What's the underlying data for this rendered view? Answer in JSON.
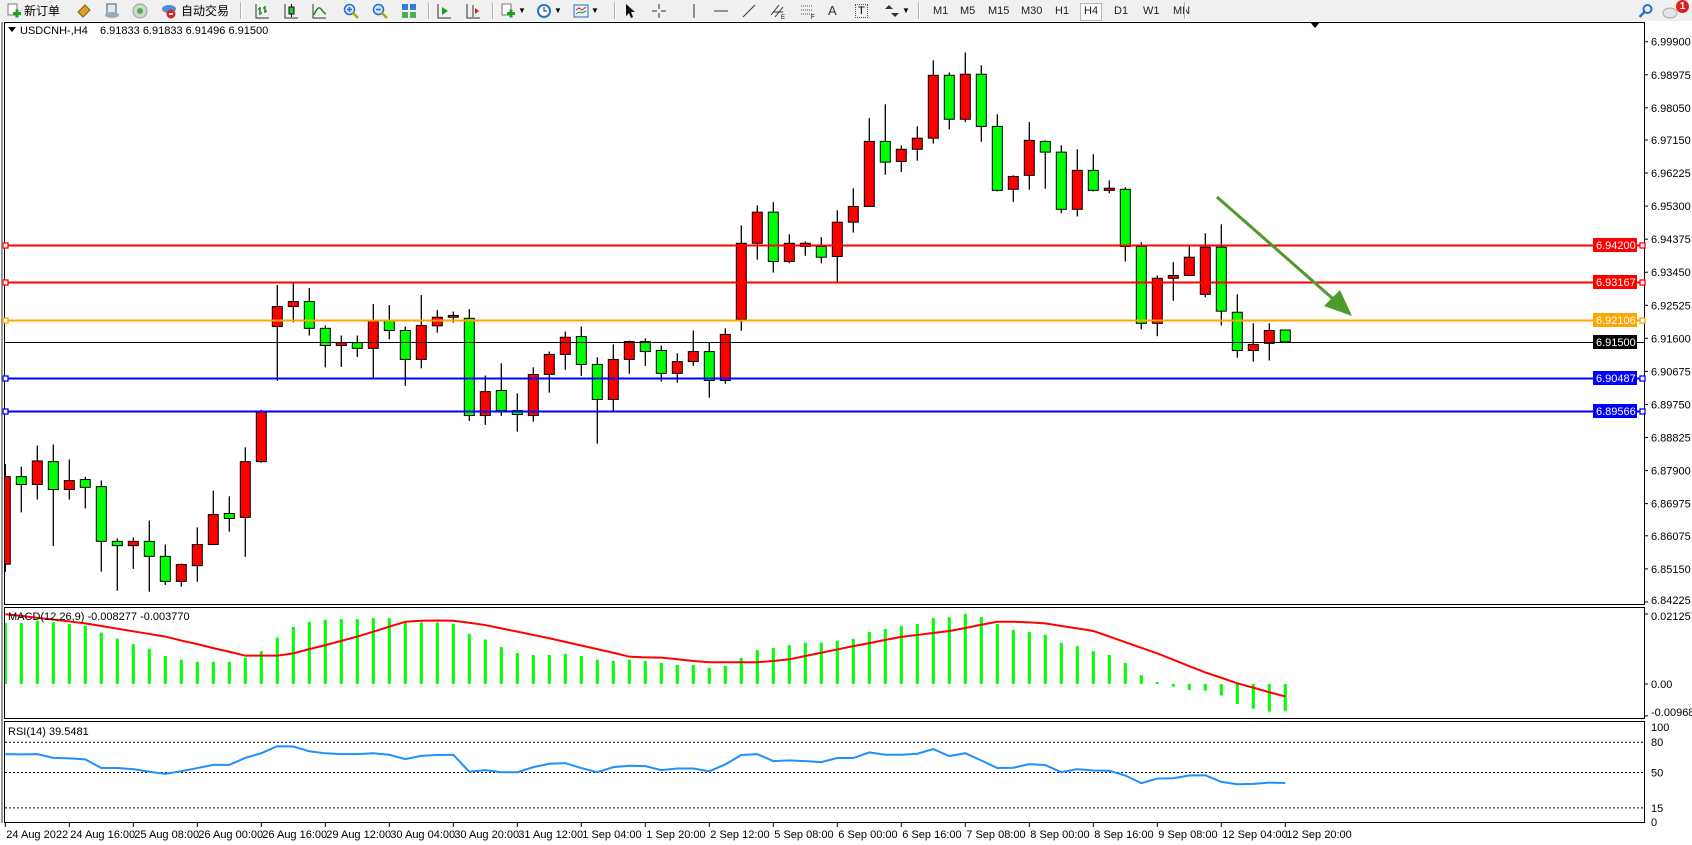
{
  "toolbar": {
    "new_order_label": "新订单",
    "autotrading_label": "自动交易",
    "text_tool_label": "A",
    "text_label_tool": "T",
    "timeframes": [
      "M1",
      "M5",
      "M15",
      "M30",
      "H1",
      "H4",
      "D1",
      "W1",
      "MN"
    ],
    "active_timeframe": "H4",
    "notification_count": "1",
    "icons": [
      "new-order-icon",
      "metaeditor-icon",
      "market-watch-icon",
      "signals-icon",
      "autotrading-icon",
      "bar-chart-icon",
      "candlestick-icon",
      "line-chart-icon",
      "zoom-in-icon",
      "zoom-out-icon",
      "tile-windows-icon",
      "auto-scroll-icon",
      "chart-shift-icon",
      "indicators-icon",
      "periods-icon",
      "templates-icon",
      "cursor-icon",
      "crosshair-icon",
      "vertical-line-icon",
      "horizontal-line-icon",
      "trendline-icon",
      "equidistant-channel-icon",
      "fibonacci-icon",
      "text-icon",
      "text-label-icon",
      "arrows-icon",
      "search-icon",
      "notifications-icon"
    ]
  },
  "chart_header": {
    "symbol": "USDCNH-,H4",
    "ohlc": "6.91833 6.91833 6.91496 6.91500"
  },
  "colors": {
    "bull_candle": "#ff0000",
    "bear_candle": "#00ff00",
    "resistance": "#ff0000",
    "pivot": "#ffa500",
    "support": "#0000ff",
    "bid_line": "#000000",
    "macd_histogram": "#00ff00",
    "macd_signal": "#ff0000",
    "rsi_line": "#1e90ff",
    "arrow": "#4e9a2a"
  },
  "chart_data": [
    {
      "type": "candlestick",
      "symbol": "USDCNH-",
      "timeframe": "H4",
      "ylim": [
        6.8417,
        7.0045
      ],
      "grid": false,
      "y_ticks": [
        "6.99900",
        "6.98975",
        "6.98050",
        "6.97150",
        "6.96225",
        "6.95300",
        "6.94375",
        "6.93450",
        "6.92525",
        "6.91600",
        "6.90675",
        "6.89750",
        "6.88825",
        "6.87900",
        "6.86975",
        "6.86075",
        "6.85150",
        "6.84225"
      ],
      "x_tick_labels": [
        "24 Aug 2022",
        "24 Aug 16:00",
        "25 Aug 08:00",
        "26 Aug 00:00",
        "26 Aug 16:00",
        "29 Aug 12:00",
        "30 Aug 04:00",
        "30 Aug 20:00",
        "31 Aug 12:00",
        "1 Sep 04:00",
        "1 Sep 20:00",
        "2 Sep 12:00",
        "5 Sep 08:00",
        "6 Sep 00:00",
        "6 Sep 16:00",
        "7 Sep 08:00",
        "8 Sep 00:00",
        "8 Sep 16:00",
        "9 Sep 08:00",
        "12 Sep 04:00",
        "12 Sep 20:00"
      ],
      "x_tick_every_bars": 4,
      "ohlc_fields": [
        "open",
        "high",
        "low",
        "close"
      ],
      "candles": [
        [
          6.8528,
          6.8808,
          6.8507,
          6.8773
        ],
        [
          6.8773,
          6.8801,
          6.8673,
          6.8751
        ],
        [
          6.8751,
          6.886,
          6.8709,
          6.8817
        ],
        [
          6.8815,
          6.8863,
          6.8579,
          6.8737
        ],
        [
          6.8737,
          6.8821,
          6.8709,
          6.8762
        ],
        [
          6.8765,
          6.8773,
          6.8684,
          6.8743
        ],
        [
          6.8745,
          6.8762,
          6.8507,
          6.8592
        ],
        [
          6.8592,
          6.86,
          6.8454,
          6.858
        ],
        [
          6.858,
          6.8603,
          6.8515,
          6.8592
        ],
        [
          6.8592,
          6.865,
          6.8451,
          6.855
        ],
        [
          6.855,
          6.8583,
          6.847,
          6.848
        ],
        [
          6.848,
          6.853,
          6.8465,
          6.8527
        ],
        [
          6.8524,
          6.8631,
          6.8479,
          6.8583
        ],
        [
          6.8583,
          6.8734,
          6.8583,
          6.8667
        ],
        [
          6.867,
          6.8718,
          6.8619,
          6.8656
        ],
        [
          6.8659,
          6.8855,
          6.8549,
          6.8815
        ],
        [
          6.8815,
          6.896,
          6.8812,
          6.8955
        ],
        [
          6.9193,
          6.9309,
          6.9041,
          6.9249
        ],
        [
          6.9249,
          6.9315,
          6.9205,
          6.9263
        ],
        [
          6.9263,
          6.9301,
          6.9168,
          6.9188
        ],
        [
          6.9188,
          6.9196,
          6.9079,
          6.914
        ],
        [
          6.914,
          6.9168,
          6.908,
          6.9148
        ],
        [
          6.9148,
          6.9168,
          6.9108,
          6.9132
        ],
        [
          6.9132,
          6.9256,
          6.9045,
          6.921
        ],
        [
          6.921,
          6.9253,
          6.9157,
          6.9182
        ],
        [
          6.9182,
          6.9193,
          6.9027,
          6.9101
        ],
        [
          6.9101,
          6.9281,
          6.9076,
          6.9196
        ],
        [
          6.9195,
          6.9239,
          6.9176,
          6.9219
        ],
        [
          6.9219,
          6.9235,
          6.9204,
          6.9224
        ],
        [
          6.9216,
          6.9242,
          6.8929,
          6.8944
        ],
        [
          6.8944,
          6.9056,
          6.8918,
          6.9011
        ],
        [
          6.9014,
          6.909,
          6.8943,
          6.8958
        ],
        [
          6.8958,
          6.9006,
          6.8899,
          6.8947
        ],
        [
          6.8944,
          6.9079,
          6.8927,
          6.9059
        ],
        [
          6.9059,
          6.9123,
          6.9008,
          6.9115
        ],
        [
          6.9115,
          6.9179,
          6.9072,
          6.9163
        ],
        [
          6.9165,
          6.9193,
          6.9055,
          6.9087
        ],
        [
          6.9087,
          6.9107,
          6.8865,
          6.8989
        ],
        [
          6.8989,
          6.9143,
          6.8958,
          6.9101
        ],
        [
          6.9101,
          6.9154,
          6.9061,
          6.9151
        ],
        [
          6.9151,
          6.916,
          6.9083,
          6.9123
        ],
        [
          6.9126,
          6.914,
          6.9039,
          6.9062
        ],
        [
          6.9062,
          6.9118,
          6.9036,
          6.9095
        ],
        [
          6.9095,
          6.9182,
          6.9083,
          6.9123
        ],
        [
          6.9123,
          6.9149,
          6.8994,
          6.9042
        ],
        [
          6.9042,
          6.9188,
          6.9033,
          6.9171
        ],
        [
          6.9213,
          6.9476,
          6.9181,
          6.9426
        ],
        [
          6.9426,
          6.9532,
          6.938,
          6.9513
        ],
        [
          6.9513,
          6.9541,
          6.9344,
          6.9375
        ],
        [
          6.9375,
          6.9451,
          6.937,
          6.9426
        ],
        [
          6.9417,
          6.9431,
          6.9391,
          6.9426
        ],
        [
          6.9417,
          6.9443,
          6.937,
          6.9387
        ],
        [
          6.9389,
          6.9518,
          6.9319,
          6.9485
        ],
        [
          6.9485,
          6.958,
          6.9456,
          6.9529
        ],
        [
          6.9529,
          6.9776,
          6.9529,
          6.9711
        ],
        [
          6.9711,
          6.9815,
          6.9618,
          6.9653
        ],
        [
          6.9655,
          6.97,
          6.9625,
          6.9689
        ],
        [
          6.9689,
          6.9753,
          6.9657,
          6.972
        ],
        [
          6.972,
          6.9938,
          6.9705,
          6.9896
        ],
        [
          6.9896,
          6.9904,
          6.9745,
          6.9773
        ],
        [
          6.9773,
          6.996,
          6.9765,
          6.9899
        ],
        [
          6.9899,
          6.9924,
          6.971,
          6.9753
        ],
        [
          6.9753,
          6.9787,
          6.9571,
          6.9574
        ],
        [
          6.9577,
          6.9616,
          6.9542,
          6.9613
        ],
        [
          6.9616,
          6.9765,
          6.9576,
          6.9714
        ],
        [
          6.9711,
          6.9714,
          6.9579,
          6.9681
        ],
        [
          6.9681,
          6.97,
          6.951,
          6.9521
        ],
        [
          6.9521,
          6.9689,
          6.9501,
          6.963
        ],
        [
          6.963,
          6.9675,
          6.9571,
          6.9574
        ],
        [
          6.9574,
          6.9602,
          6.9566,
          6.958
        ],
        [
          6.9577,
          6.9583,
          6.9375,
          6.9417
        ],
        [
          6.9417,
          6.9429,
          6.9185,
          6.9202
        ],
        [
          6.9202,
          6.9336,
          6.9166,
          6.9328
        ],
        [
          6.9328,
          6.9373,
          6.9265,
          6.9336
        ],
        [
          6.9336,
          6.942,
          6.9334,
          6.9387
        ],
        [
          6.9283,
          6.9454,
          6.9275,
          6.9415
        ],
        [
          6.9415,
          6.9479,
          6.9196,
          6.9236
        ],
        [
          6.9233,
          6.9283,
          6.9106,
          6.9126
        ],
        [
          6.9126,
          6.9202,
          6.9095,
          6.9143
        ],
        [
          6.9146,
          6.9202,
          6.9098,
          6.9182
        ],
        [
          6.91833,
          6.91833,
          6.91496,
          6.915
        ]
      ],
      "horizontal_lines": [
        {
          "price": "6.94200",
          "color": "#ff0000"
        },
        {
          "price": "6.93167",
          "color": "#ff0000"
        },
        {
          "price": "6.92106",
          "color": "#ffa500"
        },
        {
          "price": "6.91500",
          "color": "#000000",
          "kind": "bid"
        },
        {
          "price": "6.90487",
          "color": "#0000ff"
        },
        {
          "price": "6.89566",
          "color": "#0000ff"
        }
      ],
      "annotations": [
        {
          "type": "arrow",
          "color": "#4e9a2a",
          "from": {
            "bar": 75.7,
            "price": 6.944
          },
          "to": {
            "bar": 84.2,
            "price": 6.921
          }
        }
      ]
    },
    {
      "type": "bar",
      "title": "MACD(12,26,9) -0.008277 -0.003770",
      "ylim": [
        -0.009683,
        0.021257
      ],
      "y_ticks": [
        "0.021257",
        "0.00",
        "-0.009683"
      ],
      "series": [
        {
          "name": "MACD",
          "type": "bar",
          "values": [
            0.0185,
            0.0185,
            0.0192,
            0.0188,
            0.0182,
            0.0177,
            0.0156,
            0.0138,
            0.0121,
            0.0107,
            0.0085,
            0.0074,
            0.0067,
            0.0067,
            0.0067,
            0.008,
            0.01,
            0.0141,
            0.0173,
            0.0189,
            0.0195,
            0.0197,
            0.0197,
            0.02,
            0.02,
            0.0191,
            0.0187,
            0.0187,
            0.0183,
            0.0152,
            0.0135,
            0.0112,
            0.0094,
            0.0088,
            0.0088,
            0.0092,
            0.0085,
            0.0074,
            0.007,
            0.0074,
            0.007,
            0.0064,
            0.0058,
            0.0058,
            0.0049,
            0.0055,
            0.0079,
            0.0103,
            0.0109,
            0.0118,
            0.0125,
            0.0125,
            0.0131,
            0.0137,
            0.0158,
            0.0167,
            0.0176,
            0.0182,
            0.02,
            0.0203,
            0.0213,
            0.0203,
            0.0182,
            0.0164,
            0.0158,
            0.0149,
            0.0125,
            0.0115,
            0.01,
            0.0088,
            0.0064,
            0.0027,
            0.0006,
            -0.0008,
            -0.0018,
            -0.002,
            -0.0035,
            -0.0061,
            -0.0075,
            -0.0084,
            -0.008277
          ]
        },
        {
          "name": "Signal",
          "type": "line",
          "values": [
            0.0212,
            0.0207,
            0.0201,
            0.0196,
            0.019,
            0.0184,
            0.0176,
            0.0168,
            0.016,
            0.0152,
            0.0144,
            0.0132,
            0.0121,
            0.0109,
            0.0098,
            0.0086,
            0.0086,
            0.0086,
            0.0093,
            0.0106,
            0.0118,
            0.0131,
            0.0144,
            0.0159,
            0.0174,
            0.0189,
            0.0192,
            0.0193,
            0.0192,
            0.0186,
            0.0179,
            0.0169,
            0.0159,
            0.0149,
            0.0139,
            0.0128,
            0.0117,
            0.0106,
            0.0095,
            0.0083,
            0.0081,
            0.008,
            0.0075,
            0.007,
            0.0066,
            0.0066,
            0.0066,
            0.0066,
            0.007,
            0.0075,
            0.0085,
            0.0095,
            0.0105,
            0.0115,
            0.0124,
            0.0134,
            0.0143,
            0.0149,
            0.0155,
            0.0161,
            0.017,
            0.018,
            0.0189,
            0.0189,
            0.0187,
            0.0184,
            0.0176,
            0.0169,
            0.0161,
            0.0144,
            0.0127,
            0.011,
            0.0093,
            0.0074,
            0.0054,
            0.0035,
            0.0019,
            0.0002,
            -0.0011,
            -0.0025,
            -0.00377
          ]
        }
      ]
    },
    {
      "type": "line",
      "title": "RSI(14) 39.5481",
      "ylim": [
        0,
        100
      ],
      "y_ticks": [
        "100",
        "80",
        "50",
        "15",
        "0"
      ],
      "levels": [
        80,
        50,
        15
      ],
      "values": [
        68.2,
        68,
        68.2,
        64.5,
        64,
        63,
        54.4,
        54.4,
        53.3,
        50.7,
        48.7,
        51.3,
        54.4,
        57.5,
        57.5,
        64.5,
        69.1,
        76,
        75.7,
        71,
        69,
        68.2,
        68.2,
        69,
        67.6,
        63.3,
        66.5,
        67.3,
        67.6,
        50.7,
        52.4,
        50.3,
        50.3,
        55.3,
        58.7,
        59.3,
        54.4,
        50.3,
        55.3,
        56.7,
        56.3,
        52.4,
        54,
        54,
        51.3,
        58,
        67.3,
        68.2,
        61.3,
        62,
        61.3,
        60.3,
        64.3,
        64.3,
        69.9,
        67.6,
        67.6,
        68.6,
        73.2,
        66.2,
        69.1,
        61.9,
        54.4,
        54.7,
        58.3,
        57.3,
        50.3,
        53.3,
        52,
        51.7,
        47,
        39.4,
        44,
        44.3,
        47,
        47.3,
        40.7,
        38.4,
        38.7,
        40,
        39.5481
      ]
    }
  ]
}
